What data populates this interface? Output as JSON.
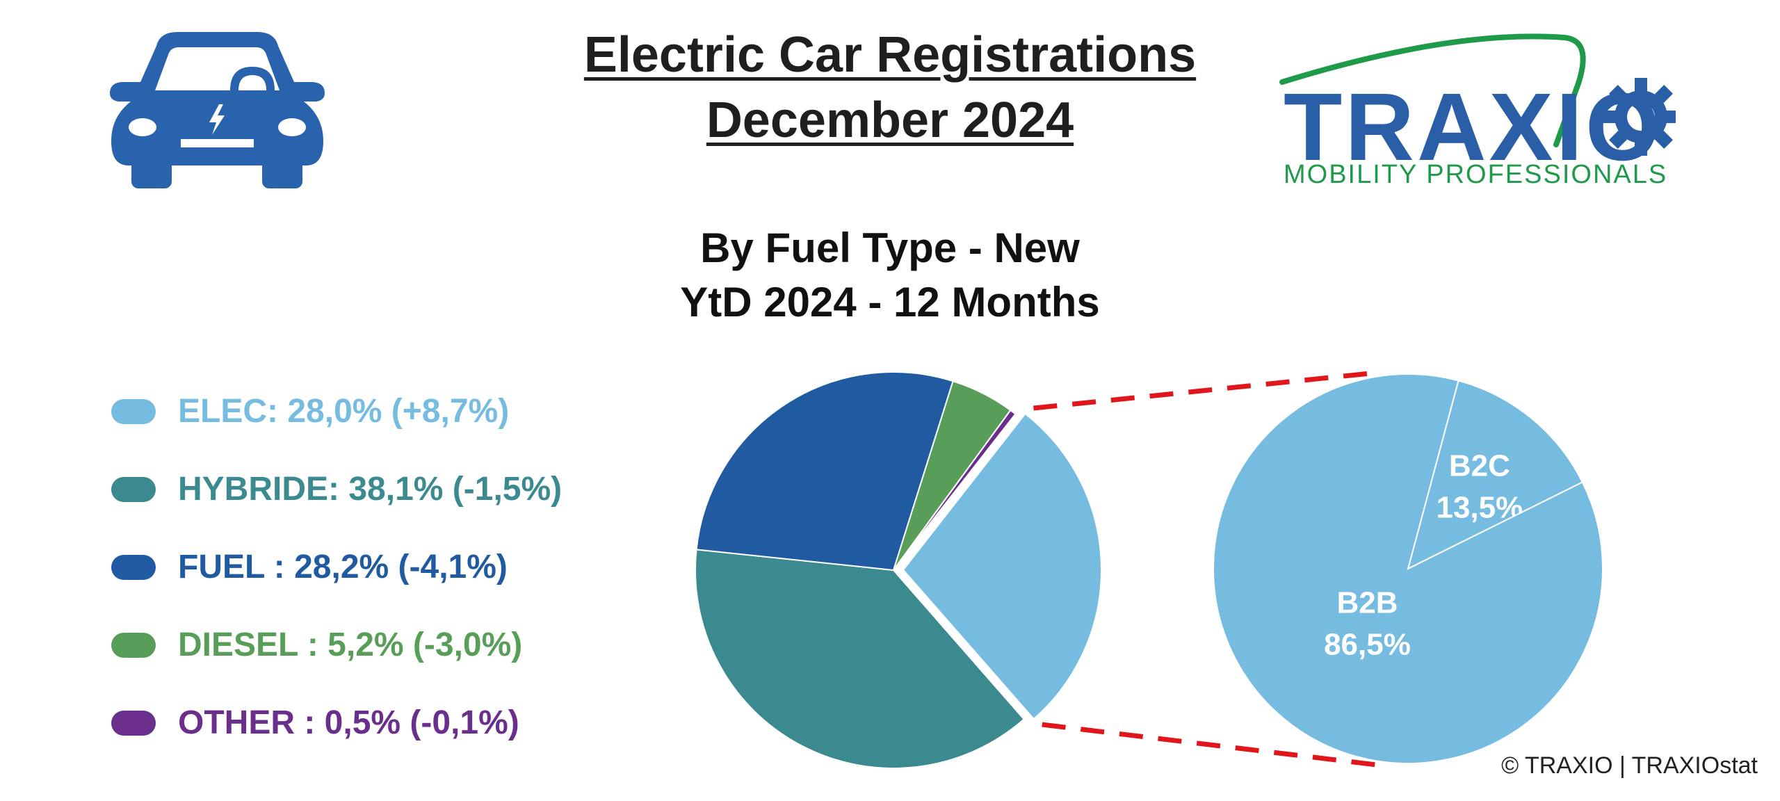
{
  "header": {
    "title_line1": "Electric Car Registrations",
    "title_line2": "December 2024",
    "car_icon": "electric-car-icon"
  },
  "logo": {
    "wordmark": "TRAXIO",
    "tagline": "MOBILITY PROFESSIONALS"
  },
  "chart_data": {
    "type": "pie",
    "title_line1": "By Fuel Type - New",
    "title_line2": "YtD 2024 - 12 Months",
    "legend_position": "left",
    "series": [
      {
        "name": "ELEC",
        "value": 28.0,
        "change": 8.7,
        "label": "ELEC: 28,0% (+8,7%)",
        "color": "#76bbe0",
        "exploded": true
      },
      {
        "name": "HYBRIDE",
        "value": 38.1,
        "change": -1.5,
        "label": "HYBRIDE: 38,1% (-1,5%)",
        "color": "#3a8a8f"
      },
      {
        "name": "FUEL",
        "value": 28.2,
        "change": -4.1,
        "label": "FUEL : 28,2% (-4,1%)",
        "color": "#205aa0"
      },
      {
        "name": "DIESEL",
        "value": 5.2,
        "change": -3.0,
        "label": "DIESEL : 5,2% (-3,0%)",
        "color": "#589e58"
      },
      {
        "name": "OTHER",
        "value": 0.5,
        "change": -0.1,
        "label": "OTHER : 0,5% (-0,1%)",
        "color": "#6a2e8c"
      }
    ],
    "breakdown": {
      "of": "ELEC",
      "type": "pie",
      "series": [
        {
          "name": "B2C",
          "value": 13.5,
          "label_name": "B2C",
          "label_value": "13,5%",
          "color": "#76bbe0"
        },
        {
          "name": "B2B",
          "value": 86.5,
          "label_name": "B2B",
          "label_value": "86,5%",
          "color": "#76bbe0"
        }
      ]
    },
    "connector_color": "#e0161b"
  },
  "footer": {
    "copyright": "© TRAXIO | TRAXIOstat"
  }
}
